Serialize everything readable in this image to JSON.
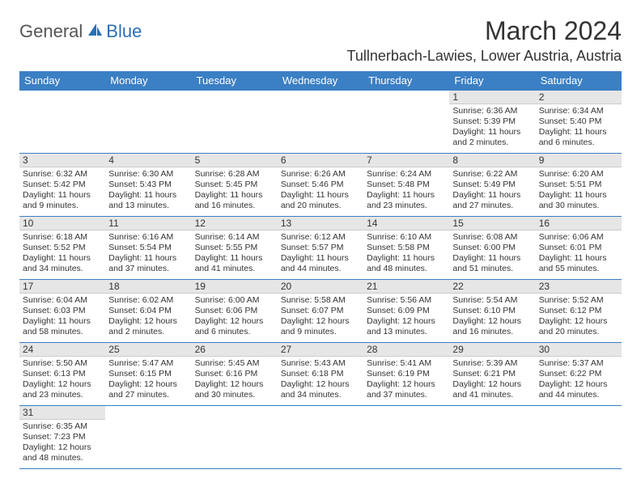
{
  "brand": {
    "part1": "General",
    "part2": "Blue"
  },
  "title": "March 2024",
  "location": "Tullnerbach-Lawies, Lower Austria, Austria",
  "colors": {
    "header_bg": "#3b7fc4",
    "header_text": "#ffffff",
    "daynum_bg": "#e6e6e6",
    "border": "#3b7fc4",
    "brand_gray": "#555555",
    "brand_blue": "#2a6fb5",
    "text": "#333333"
  },
  "day_headers": [
    "Sunday",
    "Monday",
    "Tuesday",
    "Wednesday",
    "Thursday",
    "Friday",
    "Saturday"
  ],
  "weeks": [
    [
      {
        "n": "",
        "sunrise": "",
        "sunset": "",
        "daylight": ""
      },
      {
        "n": "",
        "sunrise": "",
        "sunset": "",
        "daylight": ""
      },
      {
        "n": "",
        "sunrise": "",
        "sunset": "",
        "daylight": ""
      },
      {
        "n": "",
        "sunrise": "",
        "sunset": "",
        "daylight": ""
      },
      {
        "n": "",
        "sunrise": "",
        "sunset": "",
        "daylight": ""
      },
      {
        "n": "1",
        "sunrise": "Sunrise: 6:36 AM",
        "sunset": "Sunset: 5:39 PM",
        "daylight": "Daylight: 11 hours and 2 minutes."
      },
      {
        "n": "2",
        "sunrise": "Sunrise: 6:34 AM",
        "sunset": "Sunset: 5:40 PM",
        "daylight": "Daylight: 11 hours and 6 minutes."
      }
    ],
    [
      {
        "n": "3",
        "sunrise": "Sunrise: 6:32 AM",
        "sunset": "Sunset: 5:42 PM",
        "daylight": "Daylight: 11 hours and 9 minutes."
      },
      {
        "n": "4",
        "sunrise": "Sunrise: 6:30 AM",
        "sunset": "Sunset: 5:43 PM",
        "daylight": "Daylight: 11 hours and 13 minutes."
      },
      {
        "n": "5",
        "sunrise": "Sunrise: 6:28 AM",
        "sunset": "Sunset: 5:45 PM",
        "daylight": "Daylight: 11 hours and 16 minutes."
      },
      {
        "n": "6",
        "sunrise": "Sunrise: 6:26 AM",
        "sunset": "Sunset: 5:46 PM",
        "daylight": "Daylight: 11 hours and 20 minutes."
      },
      {
        "n": "7",
        "sunrise": "Sunrise: 6:24 AM",
        "sunset": "Sunset: 5:48 PM",
        "daylight": "Daylight: 11 hours and 23 minutes."
      },
      {
        "n": "8",
        "sunrise": "Sunrise: 6:22 AM",
        "sunset": "Sunset: 5:49 PM",
        "daylight": "Daylight: 11 hours and 27 minutes."
      },
      {
        "n": "9",
        "sunrise": "Sunrise: 6:20 AM",
        "sunset": "Sunset: 5:51 PM",
        "daylight": "Daylight: 11 hours and 30 minutes."
      }
    ],
    [
      {
        "n": "10",
        "sunrise": "Sunrise: 6:18 AM",
        "sunset": "Sunset: 5:52 PM",
        "daylight": "Daylight: 11 hours and 34 minutes."
      },
      {
        "n": "11",
        "sunrise": "Sunrise: 6:16 AM",
        "sunset": "Sunset: 5:54 PM",
        "daylight": "Daylight: 11 hours and 37 minutes."
      },
      {
        "n": "12",
        "sunrise": "Sunrise: 6:14 AM",
        "sunset": "Sunset: 5:55 PM",
        "daylight": "Daylight: 11 hours and 41 minutes."
      },
      {
        "n": "13",
        "sunrise": "Sunrise: 6:12 AM",
        "sunset": "Sunset: 5:57 PM",
        "daylight": "Daylight: 11 hours and 44 minutes."
      },
      {
        "n": "14",
        "sunrise": "Sunrise: 6:10 AM",
        "sunset": "Sunset: 5:58 PM",
        "daylight": "Daylight: 11 hours and 48 minutes."
      },
      {
        "n": "15",
        "sunrise": "Sunrise: 6:08 AM",
        "sunset": "Sunset: 6:00 PM",
        "daylight": "Daylight: 11 hours and 51 minutes."
      },
      {
        "n": "16",
        "sunrise": "Sunrise: 6:06 AM",
        "sunset": "Sunset: 6:01 PM",
        "daylight": "Daylight: 11 hours and 55 minutes."
      }
    ],
    [
      {
        "n": "17",
        "sunrise": "Sunrise: 6:04 AM",
        "sunset": "Sunset: 6:03 PM",
        "daylight": "Daylight: 11 hours and 58 minutes."
      },
      {
        "n": "18",
        "sunrise": "Sunrise: 6:02 AM",
        "sunset": "Sunset: 6:04 PM",
        "daylight": "Daylight: 12 hours and 2 minutes."
      },
      {
        "n": "19",
        "sunrise": "Sunrise: 6:00 AM",
        "sunset": "Sunset: 6:06 PM",
        "daylight": "Daylight: 12 hours and 6 minutes."
      },
      {
        "n": "20",
        "sunrise": "Sunrise: 5:58 AM",
        "sunset": "Sunset: 6:07 PM",
        "daylight": "Daylight: 12 hours and 9 minutes."
      },
      {
        "n": "21",
        "sunrise": "Sunrise: 5:56 AM",
        "sunset": "Sunset: 6:09 PM",
        "daylight": "Daylight: 12 hours and 13 minutes."
      },
      {
        "n": "22",
        "sunrise": "Sunrise: 5:54 AM",
        "sunset": "Sunset: 6:10 PM",
        "daylight": "Daylight: 12 hours and 16 minutes."
      },
      {
        "n": "23",
        "sunrise": "Sunrise: 5:52 AM",
        "sunset": "Sunset: 6:12 PM",
        "daylight": "Daylight: 12 hours and 20 minutes."
      }
    ],
    [
      {
        "n": "24",
        "sunrise": "Sunrise: 5:50 AM",
        "sunset": "Sunset: 6:13 PM",
        "daylight": "Daylight: 12 hours and 23 minutes."
      },
      {
        "n": "25",
        "sunrise": "Sunrise: 5:47 AM",
        "sunset": "Sunset: 6:15 PM",
        "daylight": "Daylight: 12 hours and 27 minutes."
      },
      {
        "n": "26",
        "sunrise": "Sunrise: 5:45 AM",
        "sunset": "Sunset: 6:16 PM",
        "daylight": "Daylight: 12 hours and 30 minutes."
      },
      {
        "n": "27",
        "sunrise": "Sunrise: 5:43 AM",
        "sunset": "Sunset: 6:18 PM",
        "daylight": "Daylight: 12 hours and 34 minutes."
      },
      {
        "n": "28",
        "sunrise": "Sunrise: 5:41 AM",
        "sunset": "Sunset: 6:19 PM",
        "daylight": "Daylight: 12 hours and 37 minutes."
      },
      {
        "n": "29",
        "sunrise": "Sunrise: 5:39 AM",
        "sunset": "Sunset: 6:21 PM",
        "daylight": "Daylight: 12 hours and 41 minutes."
      },
      {
        "n": "30",
        "sunrise": "Sunrise: 5:37 AM",
        "sunset": "Sunset: 6:22 PM",
        "daylight": "Daylight: 12 hours and 44 minutes."
      }
    ],
    [
      {
        "n": "31",
        "sunrise": "Sunrise: 6:35 AM",
        "sunset": "Sunset: 7:23 PM",
        "daylight": "Daylight: 12 hours and 48 minutes."
      },
      {
        "n": "",
        "sunrise": "",
        "sunset": "",
        "daylight": ""
      },
      {
        "n": "",
        "sunrise": "",
        "sunset": "",
        "daylight": ""
      },
      {
        "n": "",
        "sunrise": "",
        "sunset": "",
        "daylight": ""
      },
      {
        "n": "",
        "sunrise": "",
        "sunset": "",
        "daylight": ""
      },
      {
        "n": "",
        "sunrise": "",
        "sunset": "",
        "daylight": ""
      },
      {
        "n": "",
        "sunrise": "",
        "sunset": "",
        "daylight": ""
      }
    ]
  ]
}
